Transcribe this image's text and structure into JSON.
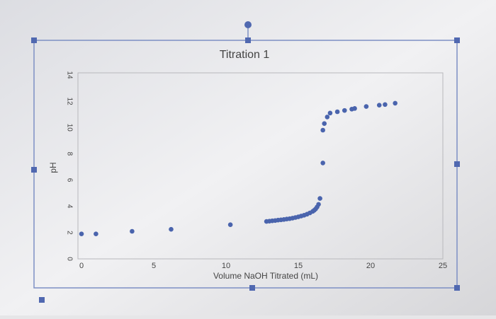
{
  "chart_data": {
    "type": "scatter",
    "title": "Titration 1",
    "x_label": "Volume NaOH Titrated (mL)",
    "y_label": "pH",
    "x": [
      0,
      1,
      3.5,
      6.2,
      10.3,
      12.8,
      13.0,
      13.2,
      13.4,
      13.6,
      13.8,
      14.0,
      14.2,
      14.4,
      14.6,
      14.8,
      15.0,
      15.2,
      15.4,
      15.6,
      15.8,
      16.0,
      16.1,
      16.2,
      16.3,
      16.4,
      16.5,
      16.7,
      16.7,
      16.8,
      17.0,
      17.2,
      17.7,
      18.2,
      18.7,
      18.9,
      19.7,
      20.6,
      21.0,
      21.7
    ],
    "values": [
      1.9,
      1.9,
      2.1,
      2.25,
      2.6,
      2.85,
      2.87,
      2.9,
      2.92,
      2.95,
      2.97,
      3.0,
      3.03,
      3.06,
      3.1,
      3.15,
      3.2,
      3.26,
      3.32,
      3.4,
      3.5,
      3.62,
      3.7,
      3.8,
      3.95,
      4.15,
      4.6,
      7.3,
      9.8,
      10.3,
      10.8,
      11.1,
      11.2,
      11.3,
      11.4,
      11.45,
      11.6,
      11.7,
      11.75,
      11.85
    ],
    "color": "#4a64ad",
    "xlim": [
      0,
      25
    ],
    "xticks": [
      0,
      5,
      10,
      15,
      20,
      25
    ],
    "ylim": [
      0,
      14
    ],
    "yticks": [
      0,
      2,
      4,
      6,
      8,
      10,
      12,
      14
    ],
    "grid": false
  }
}
